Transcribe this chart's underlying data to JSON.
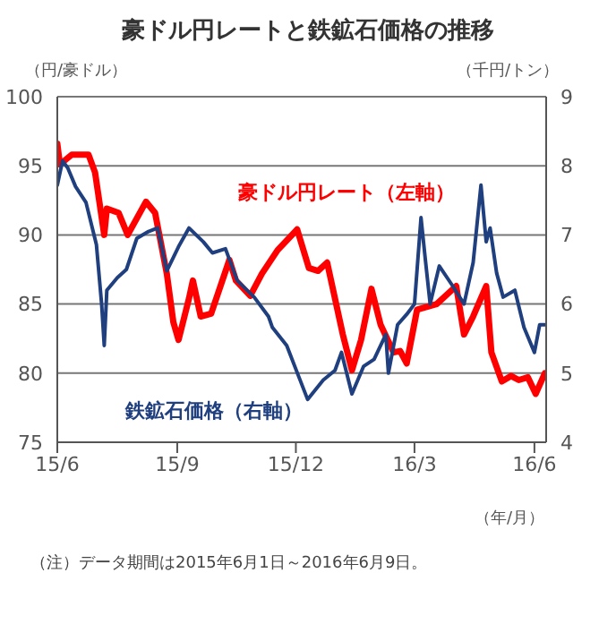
{
  "chart_data": {
    "type": "line",
    "title": "豪ドル円レートと鉄鉱石価格の推移",
    "ylabel": "（円/豪ドル）",
    "y2label": "（千円/トン）",
    "xlabel": "（年/月）",
    "annotations": [
      "（注）データ期間は2015年6月1日～2016年6月9日。"
    ],
    "xlim": [
      "2015-06-01",
      "2016-06-10"
    ],
    "xticks": [
      {
        "value": "2015-06-01",
        "label": "15/6"
      },
      {
        "value": "2015-09-01",
        "label": "15/9"
      },
      {
        "value": "2015-12-01",
        "label": "15/12"
      },
      {
        "value": "2016-03-01",
        "label": "16/3"
      },
      {
        "value": "2016-06-01",
        "label": "16/6"
      }
    ],
    "ylim": [
      75,
      100
    ],
    "yticks": [
      75,
      80,
      85,
      90,
      95,
      100
    ],
    "y2lim": [
      4,
      9
    ],
    "y2ticks": [
      4,
      5,
      6,
      7,
      8,
      9
    ],
    "grid": "y",
    "marker": "none",
    "line_style": "solid",
    "series": [
      {
        "name": "豪ドル円レート（左軸）",
        "color": "#ff0000",
        "axis": "y",
        "x": [
          "2015-06-01",
          "2015-06-03",
          "2015-06-12",
          "2015-06-25",
          "2015-06-30",
          "2015-07-07",
          "2015-07-09",
          "2015-07-18",
          "2015-07-25",
          "2015-08-08",
          "2015-08-15",
          "2015-08-24",
          "2015-08-29",
          "2015-09-02",
          "2015-09-10",
          "2015-09-13",
          "2015-09-19",
          "2015-09-27",
          "2015-10-11",
          "2015-10-16",
          "2015-10-27",
          "2015-11-05",
          "2015-11-17",
          "2015-12-02",
          "2015-12-11",
          "2015-12-18",
          "2015-12-25",
          "2016-01-06",
          "2016-01-13",
          "2016-01-20",
          "2016-01-28",
          "2016-02-04",
          "2016-02-14",
          "2016-02-19",
          "2016-02-24",
          "2016-03-03",
          "2016-03-18",
          "2016-04-02",
          "2016-04-08",
          "2016-04-15",
          "2016-04-25",
          "2016-04-29",
          "2016-05-07",
          "2016-05-14",
          "2016-05-20",
          "2016-05-27",
          "2016-06-02",
          "2016-06-09"
        ],
        "values": [
          96.6,
          95.1,
          95.8,
          95.8,
          94.5,
          90.0,
          91.9,
          91.6,
          90.0,
          92.4,
          91.6,
          87.2,
          83.7,
          82.4,
          85.4,
          86.7,
          84.1,
          84.3,
          88.2,
          86.7,
          85.6,
          87.2,
          88.9,
          90.4,
          87.6,
          87.4,
          88.0,
          82.8,
          80.2,
          82.4,
          86.1,
          83.5,
          81.5,
          81.6,
          80.7,
          84.6,
          85.0,
          86.3,
          82.8,
          84.1,
          86.3,
          81.5,
          79.4,
          79.8,
          79.5,
          79.7,
          78.5,
          80.0
        ]
      },
      {
        "name": "鉄鉱石価格（右軸）",
        "color": "#1f3f7f",
        "axis": "y2",
        "x": [
          "2015-06-01",
          "2015-06-05",
          "2015-06-09",
          "2015-06-15",
          "2015-06-23",
          "2015-07-01",
          "2015-07-05",
          "2015-07-07",
          "2015-07-09",
          "2015-07-17",
          "2015-07-24",
          "2015-08-01",
          "2015-08-10",
          "2015-08-17",
          "2015-08-24",
          "2015-09-02",
          "2015-09-10",
          "2015-09-21",
          "2015-09-28",
          "2015-10-08",
          "2015-10-17",
          "2015-10-30",
          "2015-11-10",
          "2015-11-13",
          "2015-11-24",
          "2015-12-03",
          "2015-12-10",
          "2015-12-22",
          "2015-12-31",
          "2016-01-05",
          "2016-01-13",
          "2016-01-22",
          "2016-01-30",
          "2016-02-08",
          "2016-02-10",
          "2016-02-17",
          "2016-02-24",
          "2016-03-01",
          "2016-03-06",
          "2016-03-09",
          "2016-03-13",
          "2016-03-20",
          "2016-03-30",
          "2016-04-08",
          "2016-04-15",
          "2016-04-21",
          "2016-04-25",
          "2016-04-28",
          "2016-05-03",
          "2016-05-08",
          "2016-05-17",
          "2016-05-24",
          "2016-06-01",
          "2016-06-05",
          "2016-06-09"
        ],
        "values": [
          7.72,
          8.07,
          7.97,
          7.7,
          7.47,
          6.86,
          6.0,
          5.4,
          6.2,
          6.38,
          6.5,
          6.95,
          7.05,
          7.1,
          6.48,
          6.83,
          7.1,
          6.9,
          6.74,
          6.8,
          6.34,
          6.1,
          5.82,
          5.66,
          5.4,
          4.96,
          4.62,
          4.9,
          5.04,
          5.3,
          4.7,
          5.1,
          5.2,
          5.56,
          5.0,
          5.7,
          5.85,
          6.0,
          7.25,
          6.7,
          6.0,
          6.55,
          6.27,
          6.0,
          6.6,
          7.72,
          6.9,
          7.1,
          6.45,
          6.1,
          6.2,
          5.66,
          5.3,
          5.7,
          5.7
        ]
      }
    ]
  }
}
